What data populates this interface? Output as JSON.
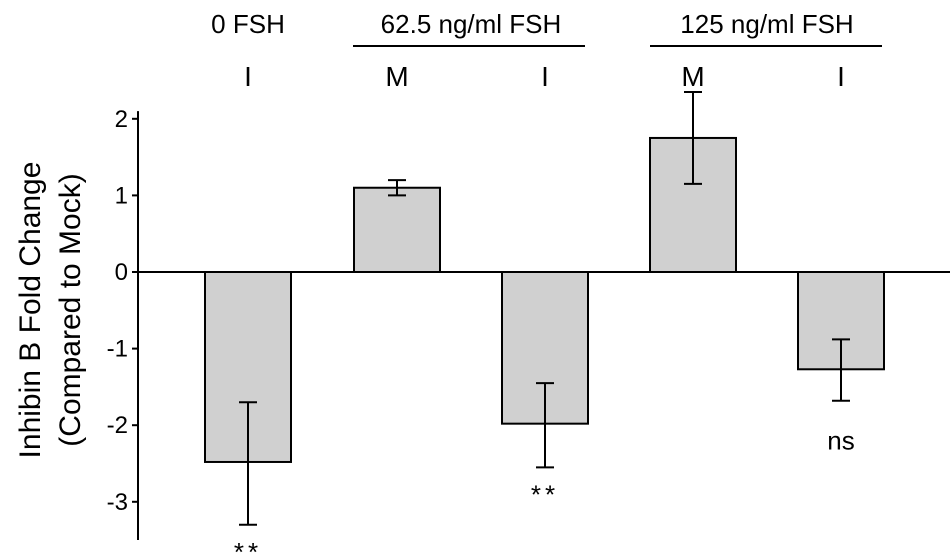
{
  "chart_data": {
    "type": "bar",
    "ylabel_lines": [
      "Inhibin B Fold Change",
      "(Compared to Mock)"
    ],
    "ylim": [
      -3.3,
      2.1
    ],
    "yticks": [
      2,
      1,
      0,
      -1,
      -2,
      -3
    ],
    "grid": false,
    "legend": "none",
    "groups": [
      {
        "label": "0 FSH",
        "underline": false
      },
      {
        "label": "62.5 ng/ml FSH",
        "underline": true
      },
      {
        "label": "125 ng/ml FSH",
        "underline": true
      }
    ],
    "bars": [
      {
        "category": "I",
        "group": 0,
        "value": -2.48,
        "err_low": -3.3,
        "err_high": -1.7,
        "annotation": "**"
      },
      {
        "category": "M",
        "group": 1,
        "value": 1.1,
        "err_low": 1.0,
        "err_high": 1.2,
        "annotation": ""
      },
      {
        "category": "I",
        "group": 1,
        "value": -1.98,
        "err_low": -2.55,
        "err_high": -1.45,
        "annotation": "**"
      },
      {
        "category": "M",
        "group": 2,
        "value": 1.75,
        "err_low": 1.15,
        "err_high": 2.35,
        "annotation": ""
      },
      {
        "category": "I",
        "group": 2,
        "value": -1.27,
        "err_low": -1.68,
        "err_high": -0.88,
        "annotation": "ns"
      }
    ],
    "colors": {
      "bar_fill": "#d0d0d0",
      "bar_stroke": "#000000",
      "axis": "#000000"
    }
  }
}
